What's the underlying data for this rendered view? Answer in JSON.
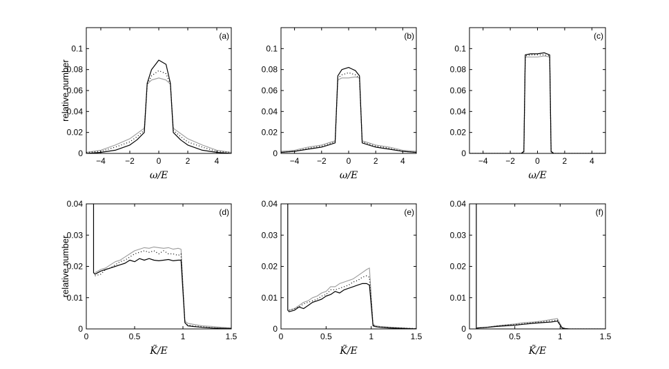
{
  "chart_data": [
    {
      "type": "line",
      "label": "(a)",
      "ylabel": "relative number",
      "xlabel": "ω/E",
      "xlim": [
        -5,
        5
      ],
      "ylim": [
        0,
        0.12
      ],
      "xticks": [
        -4,
        -2,
        0,
        2,
        4
      ],
      "xtick_labels": [
        "−4",
        "−2",
        "0",
        "2",
        "4"
      ],
      "yticks": [
        0,
        0.02,
        0.04,
        0.06,
        0.08,
        0.1
      ],
      "ytick_labels": [
        "0",
        "0.02",
        "0.04",
        "0.06",
        "0.08",
        "0.1"
      ],
      "series": [
        {
          "name": "black",
          "color": "#000000",
          "dash": "solid",
          "x": [
            -5,
            -4,
            -3,
            -2,
            -1.5,
            -1,
            -0.8,
            -0.5,
            0,
            0.5,
            0.8,
            1,
            1.5,
            2,
            3,
            4,
            5
          ],
          "y": [
            0,
            0.001,
            0.003,
            0.008,
            0.013,
            0.02,
            0.067,
            0.08,
            0.089,
            0.085,
            0.067,
            0.02,
            0.013,
            0.008,
            0.003,
            0.001,
            0
          ]
        },
        {
          "name": "gray",
          "color": "#999999",
          "dash": "solid",
          "x": [
            -5,
            -4,
            -3,
            -2,
            -1.5,
            -1,
            -0.8,
            -0.5,
            0,
            0.5,
            0.8,
            1,
            1.5,
            2,
            3,
            4,
            5
          ],
          "y": [
            0.001,
            0.003,
            0.008,
            0.014,
            0.019,
            0.024,
            0.066,
            0.07,
            0.072,
            0.07,
            0.066,
            0.024,
            0.019,
            0.014,
            0.008,
            0.003,
            0.001
          ]
        },
        {
          "name": "dotted",
          "color": "#000000",
          "dash": "dotted",
          "x": [
            -5,
            -4,
            -3,
            -2,
            -1.5,
            -1,
            -0.8,
            -0.5,
            0,
            0.5,
            0.8,
            1,
            1.5,
            2,
            3,
            4,
            5
          ],
          "y": [
            0.001,
            0.002,
            0.006,
            0.011,
            0.016,
            0.022,
            0.066,
            0.074,
            0.079,
            0.076,
            0.066,
            0.022,
            0.016,
            0.011,
            0.006,
            0.002,
            0.001
          ]
        }
      ]
    },
    {
      "type": "line",
      "label": "(b)",
      "ylabel": "",
      "xlabel": "ω/E",
      "xlim": [
        -5,
        5
      ],
      "ylim": [
        0,
        0.12
      ],
      "xticks": [
        -4,
        -2,
        0,
        2,
        4
      ],
      "xtick_labels": [
        "−4",
        "−2",
        "0",
        "2",
        "4"
      ],
      "yticks": [
        0,
        0.02,
        0.04,
        0.06,
        0.08,
        0.1
      ],
      "ytick_labels": [
        "0",
        "0.02",
        "0.04",
        "0.06",
        "0.08",
        "0.1"
      ],
      "series": [
        {
          "name": "black",
          "color": "#000000",
          "dash": "solid",
          "x": [
            -5,
            -4,
            -3,
            -2,
            -1.5,
            -1,
            -0.8,
            -0.5,
            0,
            0.5,
            0.8,
            1,
            1.5,
            2,
            3,
            4,
            5
          ],
          "y": [
            0.001,
            0.002,
            0.004,
            0.006,
            0.008,
            0.01,
            0.074,
            0.08,
            0.082,
            0.079,
            0.074,
            0.01,
            0.008,
            0.006,
            0.004,
            0.002,
            0.001
          ]
        },
        {
          "name": "gray",
          "color": "#999999",
          "dash": "solid",
          "x": [
            -5,
            -4,
            -3,
            -2,
            -1.5,
            -1,
            -0.8,
            -0.5,
            0,
            0.5,
            0.8,
            1,
            1.5,
            2,
            3,
            4,
            5
          ],
          "y": [
            0.002,
            0.003,
            0.006,
            0.008,
            0.01,
            0.012,
            0.07,
            0.072,
            0.072,
            0.073,
            0.072,
            0.012,
            0.01,
            0.008,
            0.006,
            0.003,
            0.002
          ]
        },
        {
          "name": "dotted",
          "color": "#000000",
          "dash": "dotted",
          "x": [
            -5,
            -4,
            -3,
            -2,
            -1.5,
            -1,
            -0.8,
            -0.5,
            0,
            0.5,
            0.8,
            1,
            1.5,
            2,
            3,
            4,
            5
          ],
          "y": [
            0.001,
            0.002,
            0.005,
            0.007,
            0.009,
            0.011,
            0.072,
            0.075,
            0.077,
            0.075,
            0.072,
            0.011,
            0.009,
            0.007,
            0.005,
            0.002,
            0.001
          ]
        }
      ]
    },
    {
      "type": "line",
      "label": "(c)",
      "ylabel": "",
      "xlabel": "ω/E",
      "xlim": [
        -5,
        5
      ],
      "ylim": [
        0,
        0.12
      ],
      "xticks": [
        -4,
        -2,
        0,
        2,
        4
      ],
      "xtick_labels": [
        "−4",
        "−2",
        "0",
        "2",
        "4"
      ],
      "yticks": [
        0,
        0.02,
        0.04,
        0.06,
        0.08,
        0.1
      ],
      "ytick_labels": [
        "0",
        "0.02",
        "0.04",
        "0.06",
        "0.08",
        "0.1"
      ],
      "series": [
        {
          "name": "black",
          "color": "#000000",
          "dash": "solid",
          "x": [
            -5,
            -1.2,
            -1,
            -0.9,
            -0.5,
            0,
            0.5,
            0.9,
            1,
            1.2,
            5
          ],
          "y": [
            0,
            0,
            0.002,
            0.094,
            0.095,
            0.095,
            0.096,
            0.094,
            0.002,
            0,
            0
          ]
        },
        {
          "name": "gray",
          "color": "#999999",
          "dash": "solid",
          "x": [
            -5,
            -1.2,
            -1,
            -0.9,
            -0.5,
            0,
            0.5,
            0.9,
            1,
            1.2,
            5
          ],
          "y": [
            0,
            0,
            0.001,
            0.092,
            0.092,
            0.092,
            0.093,
            0.092,
            0.001,
            0,
            0
          ]
        },
        {
          "name": "dotted",
          "color": "#000000",
          "dash": "dotted",
          "x": [
            -5,
            -1.2,
            -1,
            -0.9,
            -0.5,
            0,
            0.5,
            0.9,
            1,
            1.2,
            5
          ],
          "y": [
            0,
            0,
            0.001,
            0.093,
            0.094,
            0.094,
            0.094,
            0.093,
            0.001,
            0,
            0
          ]
        }
      ]
    },
    {
      "type": "line",
      "label": "(d)",
      "ylabel": "relative number",
      "xlabel": "K̃/E",
      "xlim": [
        0,
        1.5
      ],
      "ylim": [
        0,
        0.04
      ],
      "xticks": [
        0,
        0.5,
        1,
        1.5
      ],
      "xtick_labels": [
        "0",
        "0.5",
        "1",
        "1.5"
      ],
      "yticks": [
        0,
        0.01,
        0.02,
        0.03,
        0.04
      ],
      "ytick_labels": [
        "0",
        "0.01",
        "0.02",
        "0.03",
        "0.04"
      ],
      "series": [
        {
          "name": "black",
          "color": "#000000",
          "dash": "solid",
          "x": [
            0.075,
            0.075,
            0.09,
            0.15,
            0.2,
            0.25,
            0.3,
            0.35,
            0.4,
            0.45,
            0.5,
            0.55,
            0.6,
            0.65,
            0.7,
            0.75,
            0.8,
            0.85,
            0.9,
            0.95,
            0.98,
            1.02,
            1.05,
            1.1,
            1.2,
            1.3,
            1.4,
            1.5
          ],
          "y": [
            0.04,
            0.018,
            0.0175,
            0.0185,
            0.019,
            0.0195,
            0.02,
            0.0205,
            0.021,
            0.022,
            0.0215,
            0.0225,
            0.022,
            0.0225,
            0.022,
            0.0218,
            0.022,
            0.0222,
            0.0218,
            0.022,
            0.022,
            0.002,
            0.001,
            0.0008,
            0.0005,
            0.0003,
            0.0002,
            0.0001
          ]
        },
        {
          "name": "gray",
          "color": "#999999",
          "dash": "solid",
          "x": [
            0.09,
            0.15,
            0.2,
            0.25,
            0.3,
            0.35,
            0.4,
            0.45,
            0.5,
            0.55,
            0.6,
            0.65,
            0.7,
            0.75,
            0.8,
            0.85,
            0.9,
            0.95,
            0.98,
            1.02,
            1.05,
            1.1,
            1.2,
            1.3,
            1.4,
            1.5
          ],
          "y": [
            0.018,
            0.019,
            0.0195,
            0.0205,
            0.0215,
            0.022,
            0.023,
            0.024,
            0.025,
            0.0255,
            0.026,
            0.0258,
            0.0262,
            0.026,
            0.0258,
            0.026,
            0.0255,
            0.0258,
            0.0255,
            0.0025,
            0.0018,
            0.0015,
            0.001,
            0.0008,
            0.0005,
            0.0003
          ]
        },
        {
          "name": "dotted",
          "color": "#000000",
          "dash": "dotted",
          "x": [
            0.09,
            0.15,
            0.2,
            0.25,
            0.3,
            0.35,
            0.4,
            0.45,
            0.5,
            0.55,
            0.6,
            0.65,
            0.7,
            0.75,
            0.8,
            0.85,
            0.9,
            0.95,
            0.98,
            1.02,
            1.05,
            1.1,
            1.2,
            1.3,
            1.4,
            1.5
          ],
          "y": [
            0.017,
            0.0175,
            0.019,
            0.0195,
            0.0205,
            0.0215,
            0.022,
            0.023,
            0.024,
            0.0245,
            0.025,
            0.0245,
            0.025,
            0.024,
            0.025,
            0.024,
            0.024,
            0.0235,
            0.024,
            0.002,
            0.0012,
            0.001,
            0.0007,
            0.0004,
            0.0002,
            0.0001
          ]
        }
      ]
    },
    {
      "type": "line",
      "label": "(e)",
      "ylabel": "",
      "xlabel": "K̃/E",
      "xlim": [
        0,
        1.5
      ],
      "ylim": [
        0,
        0.04
      ],
      "xticks": [
        0,
        0.5,
        1,
        1.5
      ],
      "xtick_labels": [
        "0",
        "0.5",
        "1",
        "1.5"
      ],
      "yticks": [
        0,
        0.01,
        0.02,
        0.03,
        0.04
      ],
      "ytick_labels": [
        "0",
        "0.01",
        "0.02",
        "0.03",
        "0.04"
      ],
      "series": [
        {
          "name": "black",
          "color": "#000000",
          "dash": "solid",
          "x": [
            0.075,
            0.075,
            0.09,
            0.15,
            0.2,
            0.25,
            0.3,
            0.35,
            0.4,
            0.45,
            0.5,
            0.55,
            0.6,
            0.65,
            0.7,
            0.75,
            0.8,
            0.85,
            0.9,
            0.95,
            0.98,
            1.02,
            1.05,
            1.1,
            1.2,
            1.3,
            1.4,
            1.5
          ],
          "y": [
            0.04,
            0.006,
            0.0055,
            0.006,
            0.007,
            0.0065,
            0.0075,
            0.0085,
            0.009,
            0.0095,
            0.0105,
            0.011,
            0.012,
            0.0115,
            0.0125,
            0.013,
            0.0135,
            0.014,
            0.0145,
            0.0145,
            0.014,
            0.001,
            0.0007,
            0.0005,
            0.0003,
            0.0002,
            0.0001,
            0
          ]
        },
        {
          "name": "gray",
          "color": "#999999",
          "dash": "solid",
          "x": [
            0.09,
            0.15,
            0.2,
            0.25,
            0.3,
            0.35,
            0.4,
            0.45,
            0.5,
            0.55,
            0.6,
            0.65,
            0.7,
            0.75,
            0.8,
            0.85,
            0.9,
            0.95,
            0.98,
            1.02,
            1.05,
            1.1,
            1.2,
            1.3,
            1.4,
            1.5
          ],
          "y": [
            0.006,
            0.0065,
            0.0075,
            0.0085,
            0.009,
            0.01,
            0.0105,
            0.0115,
            0.012,
            0.0135,
            0.0135,
            0.0145,
            0.015,
            0.0155,
            0.016,
            0.017,
            0.018,
            0.019,
            0.0195,
            0.0015,
            0.001,
            0.0008,
            0.0006,
            0.0004,
            0.0002,
            0.0001
          ]
        },
        {
          "name": "dotted",
          "color": "#000000",
          "dash": "dotted",
          "x": [
            0.09,
            0.15,
            0.2,
            0.25,
            0.3,
            0.35,
            0.4,
            0.45,
            0.5,
            0.55,
            0.6,
            0.65,
            0.7,
            0.75,
            0.8,
            0.85,
            0.9,
            0.95,
            0.98,
            1.02,
            1.05,
            1.1,
            1.2,
            1.3,
            1.4,
            1.5
          ],
          "y": [
            0.006,
            0.0065,
            0.007,
            0.008,
            0.0085,
            0.009,
            0.0095,
            0.0105,
            0.011,
            0.0125,
            0.0125,
            0.013,
            0.0135,
            0.014,
            0.015,
            0.0155,
            0.0165,
            0.017,
            0.0165,
            0.0012,
            0.0008,
            0.0006,
            0.0004,
            0.0003,
            0.0002,
            0.0001
          ]
        }
      ]
    },
    {
      "type": "line",
      "label": "(f)",
      "ylabel": "",
      "xlabel": "K̃/E",
      "xlim": [
        0,
        1.5
      ],
      "ylim": [
        0,
        0.04
      ],
      "xticks": [
        0,
        0.5,
        1,
        1.5
      ],
      "xtick_labels": [
        "0",
        "0.5",
        "1",
        "1.5"
      ],
      "yticks": [
        0,
        0.01,
        0.02,
        0.03,
        0.04
      ],
      "ytick_labels": [
        "0",
        "0.01",
        "0.02",
        "0.03",
        "0.04"
      ],
      "series": [
        {
          "name": "black",
          "color": "#000000",
          "dash": "solid",
          "x": [
            0.075,
            0.075,
            0.09,
            0.2,
            0.3,
            0.4,
            0.5,
            0.6,
            0.7,
            0.8,
            0.9,
            0.97,
            1.02,
            1.05,
            1.1,
            1.5
          ],
          "y": [
            0.04,
            0.0002,
            0.0003,
            0.0005,
            0.0008,
            0.001,
            0.0012,
            0.0015,
            0.0018,
            0.002,
            0.0022,
            0.0025,
            0.0003,
            0.0001,
            0,
            0
          ]
        },
        {
          "name": "gray",
          "color": "#999999",
          "dash": "solid",
          "x": [
            0.09,
            0.2,
            0.3,
            0.4,
            0.5,
            0.6,
            0.7,
            0.8,
            0.9,
            0.97,
            1.02,
            1.05,
            1.1,
            1.5
          ],
          "y": [
            0.0003,
            0.0006,
            0.001,
            0.0013,
            0.0016,
            0.002,
            0.0022,
            0.0025,
            0.003,
            0.0033,
            0.0005,
            0.0002,
            0,
            0
          ]
        },
        {
          "name": "dotted",
          "color": "#000000",
          "dash": "dotted",
          "x": [
            0.09,
            0.2,
            0.3,
            0.4,
            0.5,
            0.6,
            0.7,
            0.8,
            0.9,
            0.97,
            1.02,
            1.05,
            1.1,
            1.5
          ],
          "y": [
            0.0003,
            0.0005,
            0.0009,
            0.0012,
            0.0014,
            0.0017,
            0.002,
            0.0023,
            0.0026,
            0.0028,
            0.0004,
            0.0001,
            0,
            0
          ]
        }
      ]
    }
  ]
}
